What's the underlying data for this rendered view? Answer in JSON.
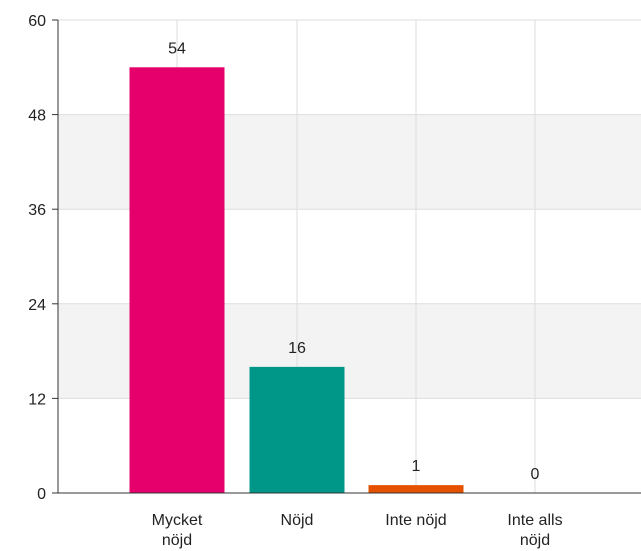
{
  "chart_data": {
    "type": "bar",
    "title": "",
    "xlabel": "",
    "ylabel": "",
    "categories": [
      [
        "Mycket",
        "nöjd"
      ],
      [
        "Nöjd"
      ],
      [
        "Inte nöjd"
      ],
      [
        "Inte alls",
        "nöjd"
      ]
    ],
    "values": [
      54,
      16,
      1,
      0
    ],
    "data_labels": [
      "54",
      "16",
      "1",
      "0"
    ],
    "ylim": [
      0,
      60
    ],
    "yticks": [
      0,
      12,
      24,
      36,
      48,
      60
    ],
    "ytick_labels": [
      "0",
      "12",
      "24",
      "36",
      "48",
      "60"
    ],
    "colors": [
      "#e5006b",
      "#009688",
      "#e65100",
      "#7b1fa2"
    ],
    "grid": true,
    "band_color": "#f3f3f3",
    "legend": "none"
  }
}
